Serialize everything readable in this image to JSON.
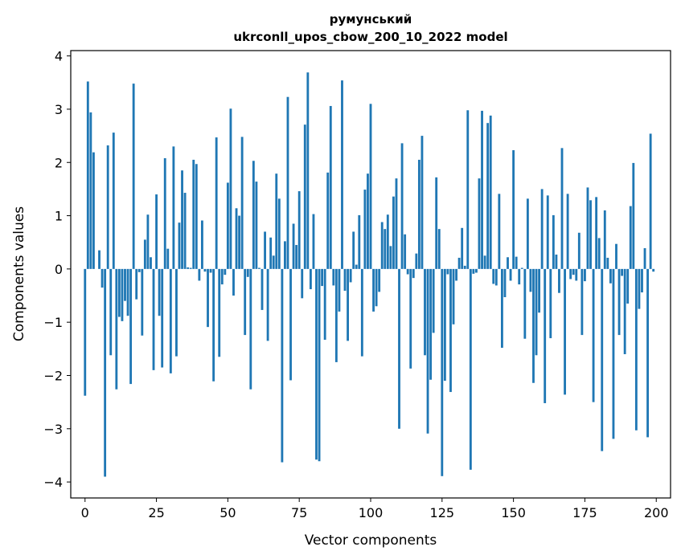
{
  "chart_data": {
    "type": "bar",
    "title": "румунський",
    "subtitle": "ukrconll_upos_cbow_200_10_2022 model",
    "xlabel": "Vector components",
    "ylabel": "Components values",
    "xlim": [
      -5,
      205
    ],
    "ylim": [
      -4.3,
      4.1
    ],
    "x_ticks": [
      0,
      25,
      50,
      75,
      100,
      125,
      150,
      175,
      200
    ],
    "y_ticks": [
      -4,
      -3,
      -2,
      -1,
      0,
      1,
      2,
      3,
      4
    ],
    "y_tick_labels": [
      "−4",
      "−3",
      "−2",
      "−1",
      "0",
      "1",
      "2",
      "3",
      "4"
    ],
    "grid": false,
    "bar_color": "#1f77b4",
    "values": [
      -2.38,
      3.52,
      2.94,
      2.19,
      0.0,
      0.35,
      -0.35,
      -3.9,
      2.32,
      -1.62,
      2.56,
      -2.26,
      -0.9,
      -0.98,
      -0.6,
      -0.88,
      -2.16,
      3.48,
      -0.57,
      -0.06,
      -1.25,
      0.55,
      1.02,
      0.22,
      -1.9,
      1.4,
      -0.88,
      -1.85,
      2.08,
      0.38,
      -1.96,
      2.3,
      -1.64,
      0.87,
      1.85,
      1.43,
      0.03,
      0.02,
      2.05,
      1.97,
      -0.22,
      0.91,
      -0.05,
      -1.09,
      -0.07,
      -2.11,
      2.47,
      -1.65,
      -0.29,
      -0.11,
      1.62,
      3.01,
      -0.5,
      1.14,
      1.0,
      2.48,
      -1.24,
      -0.15,
      -2.26,
      2.03,
      1.64,
      0.02,
      -0.77,
      0.7,
      -1.35,
      0.59,
      0.25,
      1.79,
      1.32,
      -3.63,
      0.52,
      3.23,
      -2.09,
      0.85,
      0.45,
      1.46,
      -0.55,
      2.71,
      3.69,
      -0.38,
      1.03,
      -3.58,
      -3.61,
      -0.32,
      -1.33,
      1.81,
      3.06,
      -0.31,
      -1.75,
      -0.8,
      3.54,
      -0.41,
      -1.35,
      -0.25,
      0.7,
      0.08,
      1.01,
      -1.64,
      1.49,
      1.79,
      3.1,
      -0.8,
      -0.7,
      -0.43,
      0.88,
      0.75,
      1.02,
      0.43,
      1.36,
      1.7,
      -3.0,
      2.36,
      0.65,
      -0.1,
      -1.87,
      -0.17,
      0.29,
      2.05,
      2.5,
      -1.62,
      -3.09,
      -2.08,
      -1.2,
      1.72,
      0.75,
      -3.89,
      -2.1,
      -0.1,
      -2.31,
      -1.04,
      -0.22,
      0.21,
      0.77,
      0.06,
      2.98,
      -3.77,
      -0.09,
      -0.07,
      1.7,
      2.97,
      0.25,
      2.74,
      2.88,
      -0.28,
      -0.31,
      1.41,
      -1.48,
      -0.53,
      0.22,
      -0.22,
      2.23,
      0.23,
      -0.29,
      0.02,
      -1.31,
      1.32,
      -0.43,
      -2.14,
      -1.62,
      -0.82,
      1.5,
      -2.52,
      1.38,
      -1.3,
      1.01,
      0.27,
      -0.45,
      2.27,
      -2.36,
      1.41,
      -0.19,
      -0.11,
      -0.22,
      0.68,
      -1.24,
      -0.23,
      1.53,
      1.29,
      -2.5,
      1.35,
      0.58,
      -3.42,
      1.1,
      0.21,
      -0.27,
      -3.19,
      0.47,
      -1.24,
      -0.13,
      -1.6,
      -0.65,
      1.18,
      1.99,
      -3.03,
      -0.75,
      -0.44,
      0.39,
      -3.16,
      2.54,
      -0.05
    ]
  }
}
